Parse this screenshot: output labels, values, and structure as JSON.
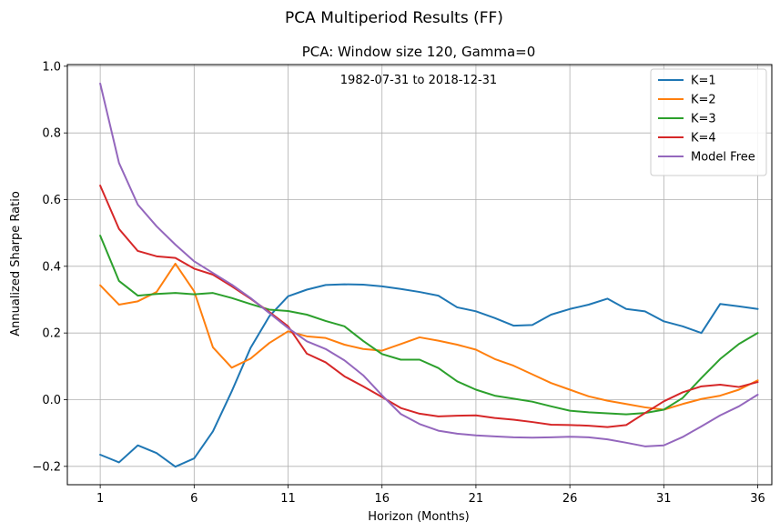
{
  "chart_data": {
    "type": "line",
    "suptitle": "PCA Multiperiod Results (FF)",
    "title": "PCA: Window size 120, Gamma=0",
    "annotation": "1982-07-31 to 2018-12-31",
    "xlabel": "Horizon (Months)",
    "ylabel": "Annualized Sharpe Ratio",
    "xlim": [
      -0.75,
      36.75
    ],
    "ylim": [
      -0.255,
      1.005
    ],
    "xticks": [
      1,
      6,
      11,
      16,
      21,
      26,
      31,
      36
    ],
    "xtick_labels": [
      "1",
      "6",
      "11",
      "16",
      "21",
      "26",
      "31",
      "36"
    ],
    "yticks": [
      -0.2,
      0.0,
      0.2,
      0.4,
      0.6,
      0.8,
      1.0
    ],
    "ytick_labels": [
      "−0.2",
      "0.0",
      "0.2",
      "0.4",
      "0.6",
      "0.8",
      "1.0"
    ],
    "grid": true,
    "legend_position": "top-right",
    "x": [
      1,
      2,
      3,
      4,
      5,
      6,
      7,
      8,
      9,
      10,
      11,
      12,
      13,
      14,
      15,
      16,
      17,
      18,
      19,
      20,
      21,
      22,
      23,
      24,
      25,
      26,
      27,
      28,
      29,
      30,
      31,
      32,
      33,
      34,
      35,
      36
    ],
    "series": [
      {
        "name": "K=1",
        "color": "#1f77b4",
        "values": [
          -0.165,
          -0.188,
          -0.137,
          -0.16,
          -0.201,
          -0.176,
          -0.095,
          0.025,
          0.155,
          0.25,
          0.31,
          0.33,
          0.344,
          0.346,
          0.345,
          0.34,
          0.332,
          0.323,
          0.312,
          0.277,
          0.265,
          0.245,
          0.222,
          0.224,
          0.255,
          0.272,
          0.285,
          0.303,
          0.272,
          0.265,
          0.235,
          0.22,
          0.2,
          0.287,
          0.28,
          0.272
        ]
      },
      {
        "name": "K=2",
        "color": "#ff7f0e",
        "values": [
          0.343,
          0.285,
          0.295,
          0.323,
          0.408,
          0.325,
          0.157,
          0.096,
          0.123,
          0.17,
          0.205,
          0.19,
          0.185,
          0.165,
          0.152,
          0.147,
          0.167,
          0.187,
          0.177,
          0.165,
          0.15,
          0.122,
          0.102,
          0.076,
          0.05,
          0.03,
          0.01,
          -0.003,
          -0.013,
          -0.023,
          -0.03,
          -0.013,
          0.002,
          0.012,
          0.03,
          0.058
        ]
      },
      {
        "name": "K=3",
        "color": "#2ca02c",
        "values": [
          0.492,
          0.356,
          0.312,
          0.317,
          0.32,
          0.316,
          0.32,
          0.305,
          0.287,
          0.27,
          0.266,
          0.255,
          0.236,
          0.22,
          0.176,
          0.137,
          0.12,
          0.12,
          0.095,
          0.055,
          0.03,
          0.012,
          0.003,
          -0.006,
          -0.02,
          -0.033,
          -0.038,
          -0.041,
          -0.044,
          -0.04,
          -0.03,
          0.005,
          0.065,
          0.122,
          0.167,
          0.2
        ]
      },
      {
        "name": "K=4",
        "color": "#d62728",
        "values": [
          0.642,
          0.512,
          0.446,
          0.43,
          0.425,
          0.393,
          0.375,
          0.34,
          0.303,
          0.263,
          0.22,
          0.138,
          0.112,
          0.07,
          0.04,
          0.008,
          -0.025,
          -0.042,
          -0.05,
          -0.048,
          -0.047,
          -0.055,
          -0.06,
          -0.067,
          -0.075,
          -0.076,
          -0.078,
          -0.082,
          -0.076,
          -0.04,
          -0.005,
          0.022,
          0.04,
          0.045,
          0.038,
          0.053
        ]
      },
      {
        "name": "Model Free",
        "color": "#9467bd",
        "values": [
          0.948,
          0.71,
          0.585,
          0.52,
          0.465,
          0.415,
          0.38,
          0.345,
          0.305,
          0.26,
          0.215,
          0.175,
          0.152,
          0.118,
          0.073,
          0.013,
          -0.043,
          -0.073,
          -0.093,
          -0.102,
          -0.107,
          -0.11,
          -0.113,
          -0.114,
          -0.113,
          -0.111,
          -0.113,
          -0.119,
          -0.129,
          -0.14,
          -0.137,
          -0.112,
          -0.08,
          -0.047,
          -0.02,
          0.015
        ]
      }
    ]
  }
}
